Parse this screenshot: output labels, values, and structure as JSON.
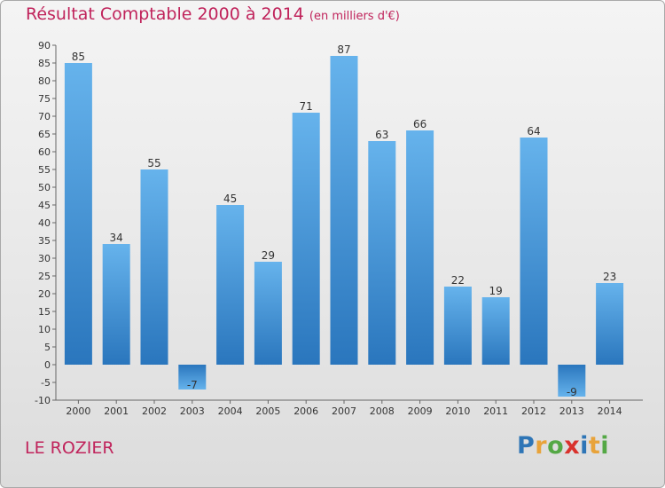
{
  "header": {
    "title": "Résultat Comptable 2000 à 2014",
    "subtitle": "(en milliers d'€)"
  },
  "footer": {
    "place": "LE ROZIER"
  },
  "logo": {
    "text": "Proxiti",
    "colors": [
      "#2e75b6",
      "#e8a33a",
      "#54a845",
      "#d9322c",
      "#2e75b6",
      "#e8a33a",
      "#54a845"
    ]
  },
  "colors": {
    "bar": "#4a9ee0",
    "bar_light": "#66b3ec",
    "bar_dark": "#2a76bd",
    "title": "#c0235b"
  },
  "chart_data": {
    "type": "bar",
    "title": "Résultat Comptable 2000 à 2014",
    "xlabel": "",
    "ylabel": "en milliers d'€",
    "ylim": [
      -10,
      90
    ],
    "yticks": [
      -10,
      -5,
      0,
      5,
      10,
      15,
      20,
      25,
      30,
      35,
      40,
      45,
      50,
      55,
      60,
      65,
      70,
      75,
      80,
      85,
      90
    ],
    "grid": false,
    "categories": [
      "2000",
      "2001",
      "2002",
      "2003",
      "2004",
      "2005",
      "2006",
      "2007",
      "2008",
      "2009",
      "2010",
      "2011",
      "2012",
      "2013",
      "2014"
    ],
    "values": [
      85,
      34,
      55,
      -7,
      45,
      29,
      71,
      87,
      63,
      66,
      22,
      19,
      64,
      -9,
      23
    ]
  }
}
